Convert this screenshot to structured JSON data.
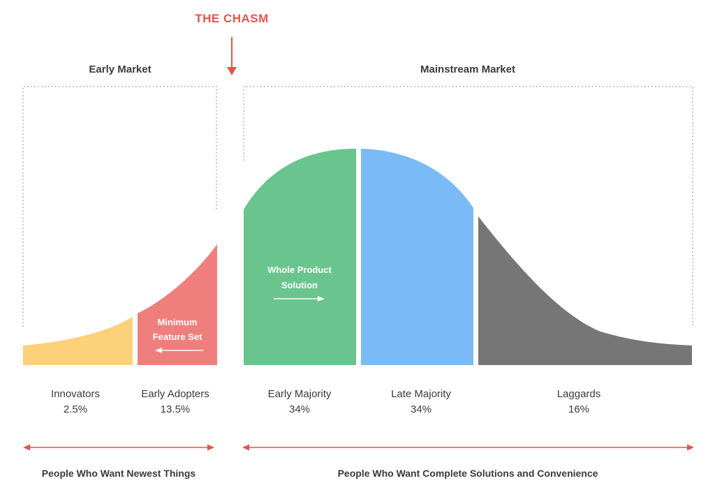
{
  "chasm": {
    "label": "THE CHASM",
    "color": "#e5534b"
  },
  "markets": {
    "early": {
      "title": "Early Market",
      "people": "People Who Want Newest Things"
    },
    "mainstream": {
      "title": "Mainstream Market",
      "people": "People Who Want Complete Solutions and Convenience"
    }
  },
  "segments": [
    {
      "name": "Innovators",
      "percent": "2.5%",
      "color": "#fdd07a"
    },
    {
      "name": "Early Adopters",
      "percent": "13.5%",
      "color": "#ef7f7c"
    },
    {
      "name": "Early Majority",
      "percent": "34%",
      "color": "#6ac48d"
    },
    {
      "name": "Late Majority",
      "percent": "34%",
      "color": "#7abaf7"
    },
    {
      "name": "Laggards",
      "percent": "16%",
      "color": "#767676"
    }
  ],
  "annotations": {
    "minimum_feature_set": {
      "line1": "Minimum",
      "line2": "Feature Set"
    },
    "whole_product": {
      "line1": "Whole Product",
      "line2": "Solution"
    }
  }
}
